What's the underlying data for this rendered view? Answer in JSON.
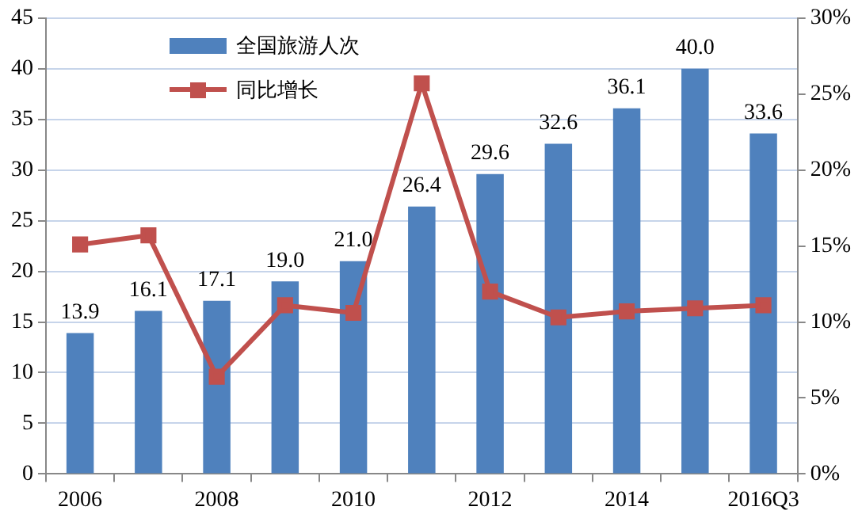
{
  "chart_data": {
    "type": "bar",
    "categories": [
      "2006",
      null,
      "2008",
      null,
      "2010",
      null,
      "2012",
      null,
      "2014",
      null,
      "2016Q3"
    ],
    "series": [
      {
        "name": "全国旅游人次",
        "color": "#4f81bd",
        "values": [
          13.9,
          16.1,
          17.1,
          19.0,
          21.0,
          26.4,
          29.6,
          32.6,
          36.1,
          40.0,
          33.6
        ],
        "value_labels": [
          "13.9",
          "16.1",
          "17.1",
          "19.0",
          "21.0",
          "26.4",
          "29.6",
          "32.6",
          "36.1",
          "40.0",
          "33.6"
        ]
      },
      {
        "name": "同比增长",
        "type": "line",
        "axis": "y2",
        "color": "#c0504d",
        "marker": "square",
        "values": [
          15.1,
          15.7,
          6.4,
          11.1,
          10.6,
          25.7,
          12.0,
          10.3,
          10.7,
          10.9,
          11.1
        ]
      }
    ],
    "ylim": [
      0,
      45
    ],
    "yticks": [
      0,
      5,
      10,
      15,
      20,
      25,
      30,
      35,
      40,
      45
    ],
    "y2lim": [
      0,
      30
    ],
    "y2ticks": [
      {
        "value": 0,
        "label": "0%"
      },
      {
        "value": 5,
        "label": "5%"
      },
      {
        "value": 10,
        "label": "10%"
      },
      {
        "value": 15,
        "label": "15%"
      },
      {
        "value": 20,
        "label": "20%"
      },
      {
        "value": 25,
        "label": "25%"
      },
      {
        "value": 30,
        "label": "30%"
      }
    ],
    "grid": "y",
    "legend": "top left"
  }
}
